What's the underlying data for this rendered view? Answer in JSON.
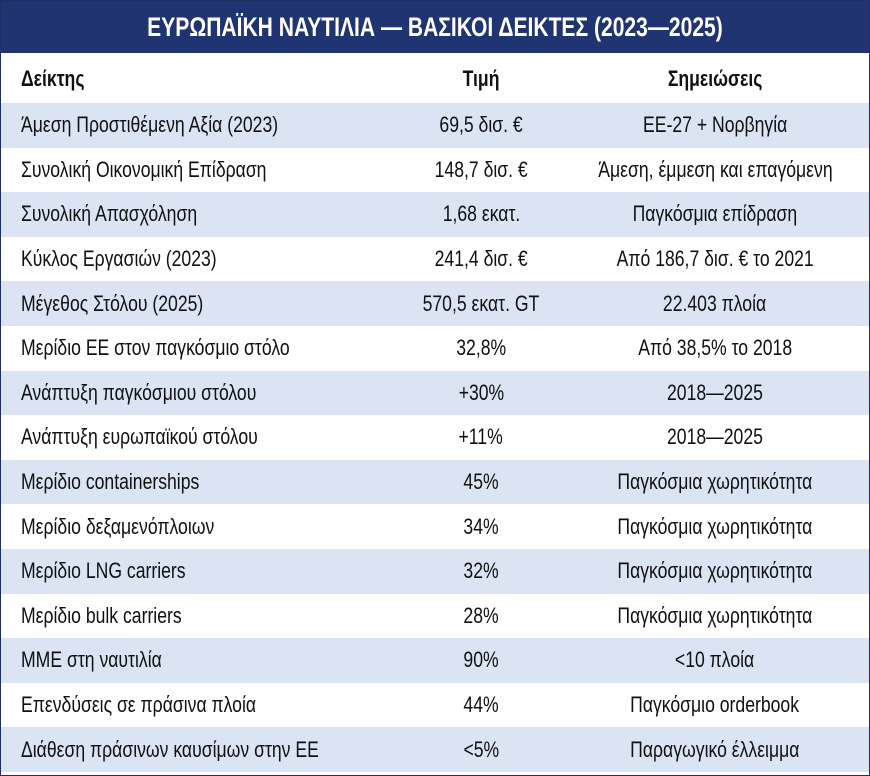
{
  "title": "ΕΥΡΩΠΑΪΚΗ ΝΑΥΤΙΛΙΑ — ΒΑΣΙΚΟΙ ΔΕΙΚΤΕΣ (2023—2025)",
  "table": {
    "headers": [
      "Δείκτης",
      "Τιμή",
      "Σημειώσεις"
    ],
    "rows": [
      [
        "Άμεση Προστιθέμενη Αξία (2023)",
        "69,5 δισ. €",
        "ΕΕ-27 + Νορβηγία"
      ],
      [
        "Συνολική Οικονομική Επίδραση",
        "148,7 δισ. €",
        "Άμεση, έμμεση και επαγόμενη"
      ],
      [
        "Συνολική Απασχόληση",
        "1,68 εκατ.",
        "Παγκόσμια επίδραση"
      ],
      [
        "Κύκλος Εργασιών (2023)",
        "241,4 δισ. €",
        "Από 186,7 δισ. € το 2021"
      ],
      [
        "Μέγεθος Στόλου (2025)",
        "570,5 εκατ. GT",
        "22.403 πλοία"
      ],
      [
        "Μερίδιο ΕΕ στον παγκόσμιο στόλο",
        "32,8%",
        "Από 38,5% το 2018"
      ],
      [
        "Ανάπτυξη παγκόσμιου στόλου",
        "+30%",
        "2018—2025"
      ],
      [
        "Ανάπτυξη ευρωπαϊκού στόλου",
        "+11%",
        "2018—2025"
      ],
      [
        "Μερίδιο containerships",
        "45%",
        "Παγκόσμια χωρητικότητα"
      ],
      [
        "Μερίδιο δεξαμενόπλοιων",
        "34%",
        "Παγκόσμια χωρητικότητα"
      ],
      [
        "Μερίδιο LNG carriers",
        "32%",
        "Παγκόσμια χωρητικότητα"
      ],
      [
        "Μερίδιο bulk carriers",
        "28%",
        "Παγκόσμια χωρητικότητα"
      ],
      [
        "ΜΜΕ στη ναυτιλία",
        "90%",
        "<10 πλοία"
      ],
      [
        "Επενδύσεις σε πράσινα πλοία",
        "44%",
        "Παγκόσμιο orderbook"
      ],
      [
        "Διάθεση πράσινων καυσίμων στην ΕΕ",
        "<5%",
        "Παραγωγικό έλλειμμα"
      ]
    ]
  }
}
